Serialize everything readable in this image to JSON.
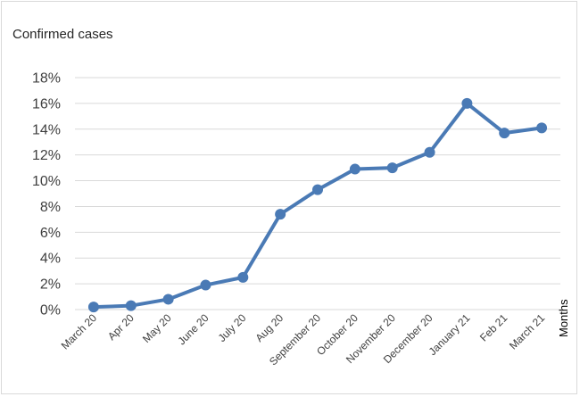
{
  "chart_data": {
    "type": "line",
    "title": "Confirmed cases",
    "xlabel": "Months",
    "ylabel": "",
    "ylim": [
      0,
      18
    ],
    "yticks": [
      "0%",
      "2%",
      "4%",
      "6%",
      "8%",
      "10%",
      "12%",
      "14%",
      "16%",
      "18%"
    ],
    "grid": true,
    "legend": "none",
    "categories": [
      "March 20",
      "Apr 20",
      "May 20",
      "June 20",
      "July 20",
      "Aug 20",
      "September 20",
      "October 20",
      "November 20",
      "December 20",
      "January 21",
      "Feb 21",
      "March 21"
    ],
    "series": [
      {
        "values": [
          0.2,
          0.3,
          0.8,
          1.9,
          2.5,
          7.4,
          9.3,
          10.9,
          11.0,
          12.2,
          16.0,
          13.7,
          14.1
        ],
        "color": "#4a7ab5"
      }
    ]
  }
}
